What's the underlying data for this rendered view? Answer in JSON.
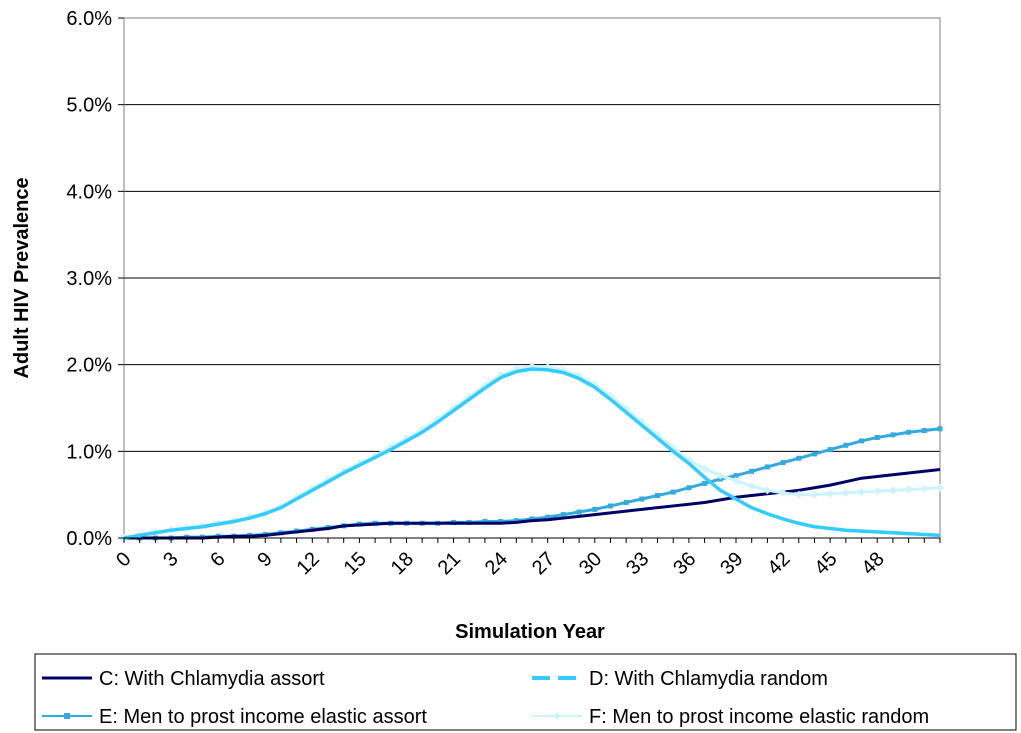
{
  "chart_data": {
    "type": "line",
    "title": "",
    "xlabel": "Simulation Year",
    "ylabel": "Adult HIV Prevalence",
    "xlim": [
      0,
      52
    ],
    "ylim": [
      0,
      6.0
    ],
    "y_ticks": [
      "0.0%",
      "1.0%",
      "2.0%",
      "3.0%",
      "4.0%",
      "5.0%",
      "6.0%"
    ],
    "x_ticks": [
      "0",
      "3",
      "6",
      "9",
      "12",
      "15",
      "18",
      "21",
      "24",
      "27",
      "30",
      "33",
      "36",
      "39",
      "42",
      "45",
      "48"
    ],
    "grid": "horizontal",
    "legend_position": "bottom",
    "x": [
      0,
      1,
      2,
      3,
      4,
      5,
      6,
      7,
      8,
      9,
      10,
      11,
      12,
      13,
      14,
      15,
      16,
      17,
      18,
      19,
      20,
      21,
      22,
      23,
      24,
      25,
      26,
      27,
      28,
      29,
      30,
      31,
      32,
      33,
      34,
      35,
      36,
      37,
      38,
      39,
      40,
      41,
      42,
      43,
      44,
      45,
      46,
      47,
      48,
      49,
      50,
      51,
      52
    ],
    "series": [
      {
        "name": "C: With Chlamydia assort",
        "color": "#000066",
        "style": "solid",
        "values": [
          0.0,
          0.0,
          0.0,
          0.0,
          0.0,
          0.0,
          0.01,
          0.02,
          0.02,
          0.03,
          0.05,
          0.07,
          0.09,
          0.11,
          0.14,
          0.15,
          0.16,
          0.17,
          0.17,
          0.17,
          0.17,
          0.17,
          0.17,
          0.17,
          0.17,
          0.18,
          0.2,
          0.21,
          0.23,
          0.25,
          0.27,
          0.29,
          0.31,
          0.33,
          0.35,
          0.37,
          0.39,
          0.41,
          0.44,
          0.47,
          0.49,
          0.51,
          0.53,
          0.55,
          0.58,
          0.61,
          0.65,
          0.69,
          0.71,
          0.73,
          0.75,
          0.77,
          0.79
        ]
      },
      {
        "name": "D: With Chlamydia random",
        "color": "#33ccff",
        "style": "dashed",
        "values": [
          0.0,
          0.03,
          0.06,
          0.09,
          0.11,
          0.13,
          0.16,
          0.19,
          0.23,
          0.28,
          0.35,
          0.45,
          0.55,
          0.65,
          0.75,
          0.84,
          0.93,
          1.02,
          1.12,
          1.22,
          1.34,
          1.47,
          1.6,
          1.73,
          1.85,
          1.92,
          1.95,
          1.94,
          1.91,
          1.84,
          1.74,
          1.6,
          1.45,
          1.3,
          1.15,
          1.0,
          0.86,
          0.7,
          0.55,
          0.45,
          0.35,
          0.28,
          0.22,
          0.17,
          0.13,
          0.11,
          0.09,
          0.08,
          0.07,
          0.06,
          0.05,
          0.04,
          0.03
        ]
      },
      {
        "name": "E: Men to prost income elastic assort",
        "color": "#33aadd",
        "style": "solid-square",
        "values": [
          0.0,
          0.0,
          0.0,
          0.0,
          0.01,
          0.01,
          0.02,
          0.02,
          0.03,
          0.04,
          0.06,
          0.08,
          0.1,
          0.12,
          0.14,
          0.16,
          0.17,
          0.17,
          0.17,
          0.17,
          0.17,
          0.18,
          0.18,
          0.19,
          0.19,
          0.2,
          0.22,
          0.24,
          0.27,
          0.3,
          0.33,
          0.37,
          0.41,
          0.45,
          0.49,
          0.53,
          0.58,
          0.63,
          0.68,
          0.72,
          0.77,
          0.82,
          0.87,
          0.92,
          0.97,
          1.02,
          1.07,
          1.12,
          1.16,
          1.19,
          1.22,
          1.24,
          1.26
        ]
      },
      {
        "name": "F: Men to prost income elastic random",
        "color": "#ccf4ff",
        "style": "solid-diamond",
        "values": [
          0.0,
          0.04,
          0.07,
          0.1,
          0.12,
          0.14,
          0.17,
          0.2,
          0.24,
          0.29,
          0.36,
          0.47,
          0.57,
          0.67,
          0.77,
          0.86,
          0.95,
          1.05,
          1.15,
          1.25,
          1.37,
          1.5,
          1.63,
          1.76,
          1.88,
          1.95,
          1.98,
          1.97,
          1.94,
          1.87,
          1.77,
          1.64,
          1.49,
          1.34,
          1.19,
          1.04,
          0.9,
          0.8,
          0.72,
          0.66,
          0.6,
          0.55,
          0.52,
          0.5,
          0.5,
          0.51,
          0.52,
          0.53,
          0.54,
          0.55,
          0.56,
          0.57,
          0.58
        ]
      }
    ]
  }
}
